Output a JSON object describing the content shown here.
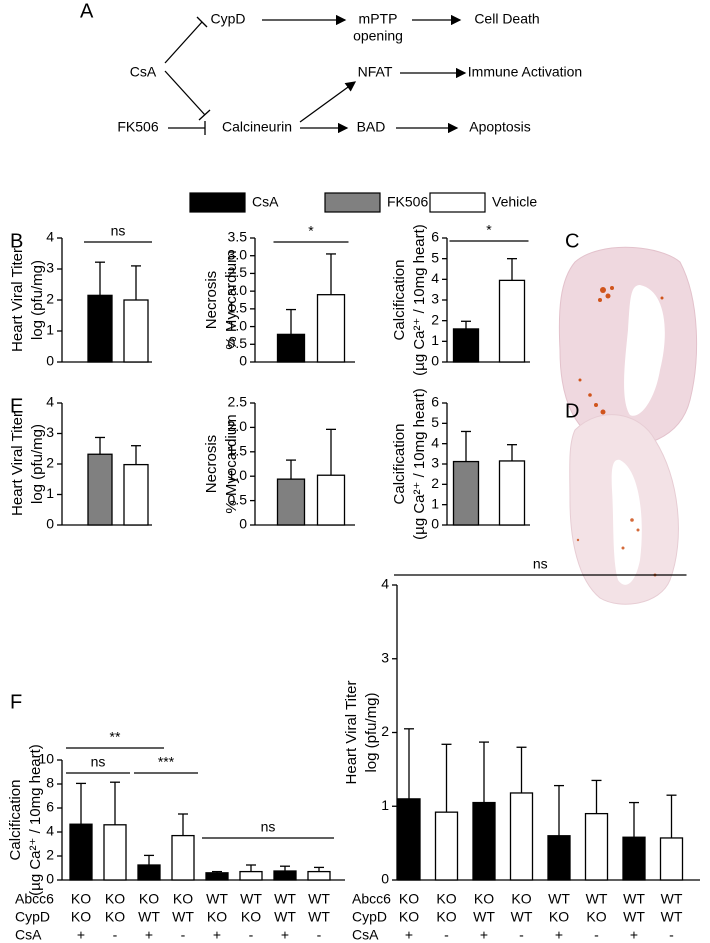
{
  "panel_labels": [
    "A",
    "B",
    "C",
    "D",
    "E",
    "F"
  ],
  "diagram": {
    "nodes": [
      [
        "CsA"
      ],
      [
        "FK506"
      ],
      [
        "CypD"
      ],
      [
        "mPTP",
        "opening"
      ],
      [
        "Cell Death"
      ],
      [
        "Calcineurin"
      ],
      [
        "NFAT"
      ],
      [
        "Immune Activation"
      ],
      [
        "BAD"
      ],
      [
        "Apoptosis"
      ]
    ]
  },
  "legend": [
    {
      "name": "CsA",
      "color": "#000000"
    },
    {
      "name": "FK506",
      "color": "#808080"
    },
    {
      "name": "Vehicle",
      "color": "#ffffff"
    }
  ],
  "chart_data": [
    {
      "type": "bar",
      "ylabel": [
        "Heart Viral Titer",
        "log (pfu/mg)"
      ],
      "ylim": [
        0,
        4
      ],
      "yticks": [
        0,
        1,
        2,
        3,
        4
      ],
      "values": [
        2.15,
        2.0
      ],
      "errors": [
        1.07,
        1.1
      ],
      "colors": [
        "#000000",
        "#ffffff"
      ],
      "annotations": [
        "ns"
      ]
    },
    {
      "type": "bar",
      "ylabel": [
        "Necrosis",
        "% Myocardium"
      ],
      "ylim": [
        0,
        3.5
      ],
      "yticks": [
        0,
        0.5,
        {
          "value": 1,
          "label": "1.0"
        },
        1.5,
        {
          "value": 2,
          "label": "2.0"
        },
        2.5,
        {
          "value": 3,
          "label": "3.0"
        },
        3.5
      ],
      "values": [
        0.78,
        1.9
      ],
      "errors": [
        0.7,
        1.15
      ],
      "colors": [
        "#000000",
        "#ffffff"
      ],
      "annotations": [
        "*"
      ]
    },
    {
      "type": "bar",
      "ylabel": [
        "Calcification",
        "(µg Ca²⁺ / 10mg heart)"
      ],
      "ylim": [
        0,
        6
      ],
      "yticks": [
        0,
        1,
        2,
        3,
        4,
        5,
        6
      ],
      "values": [
        1.6,
        3.95
      ],
      "errors": [
        0.37,
        1.05
      ],
      "colors": [
        "#000000",
        "#ffffff"
      ],
      "annotations": [
        "*"
      ]
    },
    {
      "type": "bar",
      "ylabel": [
        "Heart Viral Titer",
        "log (pfu/mg)"
      ],
      "ylim": [
        0,
        4
      ],
      "yticks": [
        0,
        1,
        2,
        3,
        4
      ],
      "values": [
        2.32,
        1.98
      ],
      "errors": [
        0.55,
        0.62
      ],
      "colors": [
        "#808080",
        "#ffffff"
      ]
    },
    {
      "type": "bar",
      "ylabel": [
        "Necrosis",
        "% Myocardium"
      ],
      "ylim": [
        0,
        2.5
      ],
      "yticks": [
        0,
        0.5,
        {
          "value": 1,
          "label": "1.0"
        },
        1.5,
        {
          "value": 2,
          "label": "2.0"
        },
        2.5
      ],
      "values": [
        0.94,
        1.02
      ],
      "errors": [
        0.39,
        0.94
      ],
      "colors": [
        "#808080",
        "#ffffff"
      ]
    },
    {
      "type": "bar",
      "ylabel": [
        "Calcification",
        "(µg Ca²⁺ / 10mg heart)"
      ],
      "ylim": [
        0,
        6
      ],
      "yticks": [
        0,
        1,
        2,
        3,
        4,
        5,
        6
      ],
      "values": [
        3.12,
        3.15
      ],
      "errors": [
        1.48,
        0.8
      ],
      "colors": [
        "#808080",
        "#ffffff"
      ]
    },
    {
      "type": "bar",
      "ylabel": [
        "Calcification",
        "(µg Ca²⁺ / 10mg heart)"
      ],
      "ylim": [
        0,
        10
      ],
      "yticks": [
        0,
        2,
        4,
        6,
        8,
        10
      ],
      "values": [
        4.65,
        4.6,
        1.25,
        3.7,
        0.6,
        0.7,
        0.75,
        0.7
      ],
      "errors": [
        3.4,
        3.55,
        0.8,
        1.8,
        0.1,
        0.55,
        0.4,
        0.35
      ],
      "colors": [
        "#000000",
        "#ffffff",
        "#000000",
        "#ffffff",
        "#000000",
        "#ffffff",
        "#000000",
        "#ffffff"
      ],
      "annotations": [
        "**",
        "ns",
        "***",
        "ns"
      ],
      "row_labels": [
        "Abcc6",
        "CypD",
        "CsA"
      ],
      "rows": [
        [
          "KO",
          "KO",
          "KO",
          "KO",
          "WT",
          "WT",
          "WT",
          "WT"
        ],
        [
          "KO",
          "KO",
          "WT",
          "WT",
          "KO",
          "KO",
          "WT",
          "WT"
        ],
        [
          "+",
          "-",
          "+",
          "-",
          "+",
          "-",
          "+",
          "-"
        ]
      ]
    },
    {
      "type": "bar",
      "ylabel": [
        "Heart Viral Titer",
        "log (pfu/mg)"
      ],
      "ylim": [
        0,
        4
      ],
      "yticks": [
        0,
        1,
        2,
        3,
        4
      ],
      "values": [
        1.1,
        0.92,
        1.05,
        1.18,
        0.6,
        0.9,
        0.58,
        0.57
      ],
      "errors": [
        0.95,
        0.92,
        0.82,
        0.62,
        0.68,
        0.45,
        0.47,
        0.58
      ],
      "colors": [
        "#000000",
        "#ffffff",
        "#000000",
        "#ffffff",
        "#000000",
        "#ffffff",
        "#000000",
        "#ffffff"
      ],
      "annotations": [
        "ns"
      ],
      "row_labels": [
        "Abcc6",
        "CypD",
        "CsA"
      ],
      "rows": [
        [
          "KO",
          "KO",
          "KO",
          "KO",
          "WT",
          "WT",
          "WT",
          "WT"
        ],
        [
          "KO",
          "KO",
          "WT",
          "WT",
          "KO",
          "KO",
          "WT",
          "WT"
        ],
        [
          "+",
          "-",
          "+",
          "-",
          "+",
          "-",
          "+",
          "-"
        ]
      ]
    }
  ]
}
